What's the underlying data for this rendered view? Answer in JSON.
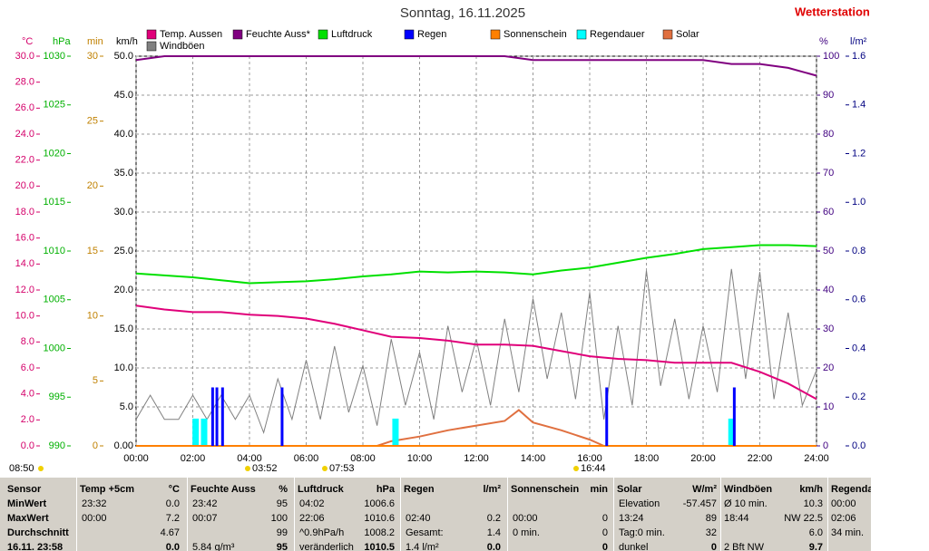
{
  "chart_data": {
    "type": "line",
    "title": "Sonntag, 16.11.2025",
    "brand": "Wetterstation",
    "xlim": [
      0,
      24
    ],
    "xticks": [
      {
        "value": 0,
        "label": "00:00"
      },
      {
        "value": 2,
        "label": "02:00"
      },
      {
        "value": 4,
        "label": "04:00"
      },
      {
        "value": 6,
        "label": "06:00"
      },
      {
        "value": 8,
        "label": "08:00"
      },
      {
        "value": 10,
        "label": "10:00"
      },
      {
        "value": 12,
        "label": "12:00"
      },
      {
        "value": 14,
        "label": "14:00"
      },
      {
        "value": 16,
        "label": "16:00"
      },
      {
        "value": 18,
        "label": "18:00"
      },
      {
        "value": 20,
        "label": "20:00"
      },
      {
        "value": 22,
        "label": "22:00"
      },
      {
        "value": 24,
        "label": "24:00"
      }
    ],
    "grid": true,
    "axes": [
      {
        "label": "°C",
        "color": "#d4006a",
        "lim": [
          0,
          30
        ],
        "ticks": [
          {
            "value": 0,
            "label": "0.0"
          },
          {
            "value": 2,
            "label": "2.0"
          },
          {
            "value": 4,
            "label": "4.0"
          },
          {
            "value": 6,
            "label": "6.0"
          },
          {
            "value": 8,
            "label": "8.0"
          },
          {
            "value": 10,
            "label": "10.0"
          },
          {
            "value": 12,
            "label": "12.0"
          },
          {
            "value": 14,
            "label": "14.0"
          },
          {
            "value": 16,
            "label": "16.0"
          },
          {
            "value": 18,
            "label": "18.0"
          },
          {
            "value": 20,
            "label": "20.0"
          },
          {
            "value": 22,
            "label": "22.0"
          },
          {
            "value": 24,
            "label": "24.0"
          },
          {
            "value": 26,
            "label": "26.0"
          },
          {
            "value": 28,
            "label": "28.0"
          },
          {
            "value": 30,
            "label": "30.0"
          }
        ]
      },
      {
        "label": "hPa",
        "color": "#00b000",
        "lim": [
          990,
          1030
        ],
        "ticks": [
          990,
          995,
          1000,
          1005,
          1010,
          1015,
          1020,
          1025,
          1030
        ]
      },
      {
        "label": "min",
        "color": "#c08000",
        "lim": [
          0,
          30
        ],
        "ticks": [
          0,
          5,
          10,
          15,
          20,
          25,
          30
        ]
      },
      {
        "label": "km/h",
        "color": "#000000",
        "lim": [
          0,
          50
        ],
        "grid": true,
        "ticks": [
          {
            "value": 0,
            "label": "0.00"
          },
          {
            "value": 5,
            "label": "5.0"
          },
          {
            "value": 10,
            "label": "10.0"
          },
          {
            "value": 15,
            "label": "15.0"
          },
          {
            "value": 20,
            "label": "20.0"
          },
          {
            "value": 25,
            "label": "25.0"
          },
          {
            "value": 30,
            "label": "30.0"
          },
          {
            "value": 35,
            "label": "35.0"
          },
          {
            "value": 40,
            "label": "40.0"
          },
          {
            "value": 45,
            "label": "45.0"
          },
          {
            "value": 50,
            "label": "50.0"
          }
        ]
      },
      {
        "label": "%",
        "color": "#400080",
        "lim": [
          0,
          100
        ],
        "ticks": [
          0,
          10,
          20,
          30,
          40,
          50,
          60,
          70,
          80,
          90,
          100
        ]
      },
      {
        "label": "l/m²",
        "color": "#000080",
        "lim": [
          0,
          1.6
        ],
        "ticks": [
          {
            "value": 0,
            "label": "0.0"
          },
          0.2,
          0.4,
          0.6,
          0.8,
          {
            "value": 1,
            "label": "1.0"
          },
          1.2,
          1.4,
          1.6
        ]
      }
    ],
    "series": [
      {
        "name": "Temp. Aussen",
        "color": "#e0007a",
        "type": "line",
        "axis": "°C",
        "x": [
          0,
          1,
          2,
          3,
          4,
          5,
          6,
          7,
          8,
          9,
          10,
          11,
          12,
          13,
          14,
          15,
          16,
          17,
          18,
          19,
          20,
          21,
          22,
          23,
          24
        ],
        "values": [
          10.8,
          10.5,
          10.3,
          10.3,
          10.1,
          10.0,
          9.8,
          9.4,
          8.9,
          8.4,
          8.3,
          8.1,
          7.8,
          7.8,
          7.7,
          7.3,
          6.9,
          6.7,
          6.6,
          6.4,
          6.4,
          6.4,
          5.7,
          4.8,
          3.6
        ]
      },
      {
        "name": "Feuchte Auss*",
        "color": "#800080",
        "type": "line",
        "axis": "%",
        "x": [
          0,
          1,
          2,
          3,
          4,
          5,
          6,
          7,
          8,
          9,
          10,
          11,
          12,
          13,
          14,
          15,
          16,
          17,
          18,
          19,
          20,
          21,
          22,
          23,
          24
        ],
        "values": [
          99,
          100,
          100,
          100,
          100,
          100,
          100,
          100,
          100,
          100,
          100,
          100,
          100,
          100,
          99,
          99,
          99,
          99,
          99,
          99,
          99,
          98,
          98,
          97,
          95
        ]
      },
      {
        "name": "Luftdruck",
        "color": "#00e000",
        "type": "line",
        "axis": "hPa",
        "x": [
          0,
          1,
          2,
          3,
          4,
          5,
          6,
          7,
          8,
          9,
          10,
          11,
          12,
          13,
          14,
          15,
          16,
          17,
          18,
          19,
          20,
          21,
          22,
          23,
          24
        ],
        "values": [
          1007.7,
          1007.5,
          1007.3,
          1007.0,
          1006.7,
          1006.8,
          1006.9,
          1007.1,
          1007.4,
          1007.6,
          1007.9,
          1007.8,
          1007.9,
          1007.8,
          1007.6,
          1008.0,
          1008.3,
          1008.8,
          1009.3,
          1009.7,
          1010.2,
          1010.4,
          1010.6,
          1010.6,
          1010.5
        ]
      },
      {
        "name": "Regen",
        "color": "#0000ff",
        "type": "bar",
        "axis": "l/m²",
        "x": [
          2.7,
          2.85,
          3.05,
          5.15,
          16.6,
          21.1
        ],
        "values": [
          0.24,
          0.24,
          0.24,
          0.24,
          0.24,
          0.24
        ]
      },
      {
        "name": "Sonnenschein",
        "color": "#ff8000",
        "type": "line",
        "axis": "min",
        "x": [
          0,
          24
        ],
        "values": [
          0,
          0
        ]
      },
      {
        "name": "Regendauer",
        "color": "#00ffff",
        "type": "bar",
        "axis": "min",
        "x": [
          2.1,
          2.4,
          9.15,
          21.0
        ],
        "values": [
          2.1,
          2.1,
          2.1,
          2.1
        ]
      },
      {
        "name": "Solar",
        "color": "#e07040",
        "type": "line",
        "axis": "km/h",
        "x": [
          8.5,
          9,
          10,
          11,
          12,
          13,
          13.5,
          14,
          15,
          16,
          16.5
        ],
        "values": [
          0,
          0.6,
          1.2,
          2.0,
          2.6,
          3.2,
          4.6,
          3.0,
          2.0,
          0.8,
          0
        ]
      },
      {
        "name": "Windböen",
        "color": "#808080",
        "type": "line",
        "axis": "km/h",
        "x": [
          0,
          0.5,
          1,
          1.5,
          2,
          2.5,
          3,
          3.5,
          4,
          4.5,
          5,
          5.5,
          6,
          6.5,
          7,
          7.5,
          8,
          8.5,
          9,
          9.5,
          10,
          10.5,
          11,
          11.5,
          12,
          12.5,
          13,
          13.5,
          14,
          14.5,
          15,
          15.5,
          16,
          16.5,
          17,
          17.5,
          18,
          18.5,
          19,
          19.5,
          20,
          20.5,
          21,
          21.5,
          22,
          22.5,
          23,
          23.5,
          24
        ],
        "values": [
          3.4,
          6.5,
          3.4,
          3.4,
          6.5,
          3.4,
          6.5,
          3.4,
          6.5,
          1.7,
          8.6,
          3.4,
          11,
          3.4,
          12.8,
          4.3,
          10.3,
          2.6,
          13.7,
          5.2,
          12,
          3.4,
          15.4,
          6.9,
          13.7,
          5.2,
          16.3,
          6.9,
          18.9,
          8.6,
          17.1,
          6.0,
          19.7,
          3.4,
          15.4,
          5.2,
          22.5,
          7.7,
          16.3,
          6.0,
          15.4,
          6.9,
          22.7,
          8.6,
          22.3,
          6.0,
          17.1,
          5.2,
          9.7
        ]
      }
    ],
    "annotations": [
      "08:50",
      "03:52",
      "07:53",
      "16:44"
    ]
  },
  "table": {
    "columns": [
      {
        "title": "Sensor",
        "rows": [
          "MinWert",
          "MaxWert",
          "Durchschnitt",
          "16.11. 23:58"
        ]
      },
      {
        "title": "Temp +5cm",
        "unit": "°C",
        "rows": [
          [
            "23:32",
            "0.0"
          ],
          [
            "00:00",
            "7.2"
          ],
          [
            null,
            "4.67"
          ],
          [
            null,
            "0.0"
          ]
        ]
      },
      {
        "title": "Feuchte Auss",
        "unit": "%",
        "rows": [
          [
            "23:42",
            "95"
          ],
          [
            "00:07",
            "100"
          ],
          [
            null,
            "99"
          ],
          [
            "5.84 g/m³",
            "95"
          ]
        ]
      },
      {
        "title": "Luftdruck",
        "unit": "hPa",
        "rows": [
          [
            "04:02",
            "1006.6"
          ],
          [
            "22:06",
            "1010.6"
          ],
          [
            "^0.9hPa/h",
            "1008.2"
          ],
          [
            "veränderlich",
            "1010.5"
          ]
        ]
      },
      {
        "title": "Regen",
        "unit": "l/m²",
        "rows": [
          [
            null,
            null
          ],
          [
            "02:40",
            "0.2"
          ],
          [
            "Gesamt:",
            "1.4"
          ],
          [
            "1.4 l/m²",
            "0.0"
          ]
        ]
      },
      {
        "title": "Sonnenschein",
        "unit": "min",
        "rows": [
          [
            null,
            null
          ],
          [
            "00:00",
            "0"
          ],
          [
            "0 min.",
            "0"
          ],
          [
            null,
            "0"
          ]
        ]
      },
      {
        "title": "Solar",
        "unit": "W/m²",
        "rows": [
          [
            "Elevation",
            "-57.457"
          ],
          [
            "13:24",
            "89"
          ],
          [
            "Tag:0 min.",
            "32"
          ],
          [
            "dunkel",
            "0"
          ]
        ]
      },
      {
        "title": "Windböen",
        "unit": "km/h",
        "rows": [
          [
            "Ø 10 min.",
            "10.3"
          ],
          [
            "18:44",
            "NW 22.5"
          ],
          [
            null,
            "6.0"
          ],
          [
            "2 Bft NW",
            "9.7"
          ]
        ]
      },
      {
        "title": "Regendauer",
        "rows": [
          "00:00",
          "02:06",
          "34 min.",
          null
        ]
      }
    ]
  }
}
